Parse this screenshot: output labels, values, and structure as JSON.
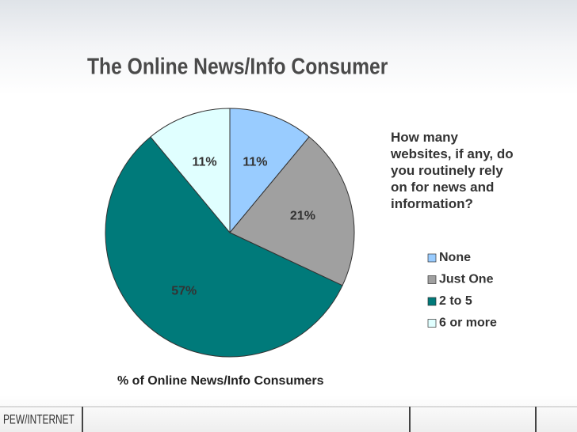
{
  "chart_data": {
    "type": "pie",
    "title": "The Online News/Info Consumer",
    "legend_title": "How many websites, if any, do you routinely rely on for news and information?",
    "xlabel": "% of Online News/Info Consumers",
    "categories": [
      "None",
      "Just One",
      "2 to 5",
      "6 or more"
    ],
    "values": [
      11,
      21,
      57,
      11
    ],
    "value_labels": [
      "11%",
      "21%",
      "57%",
      "11%"
    ],
    "colors": [
      "#99ccff",
      "#a0a0a0",
      "#007a7a",
      "#e0ffff"
    ],
    "legend": "right"
  },
  "footer": {
    "logo": "PEW/INTERNET"
  }
}
